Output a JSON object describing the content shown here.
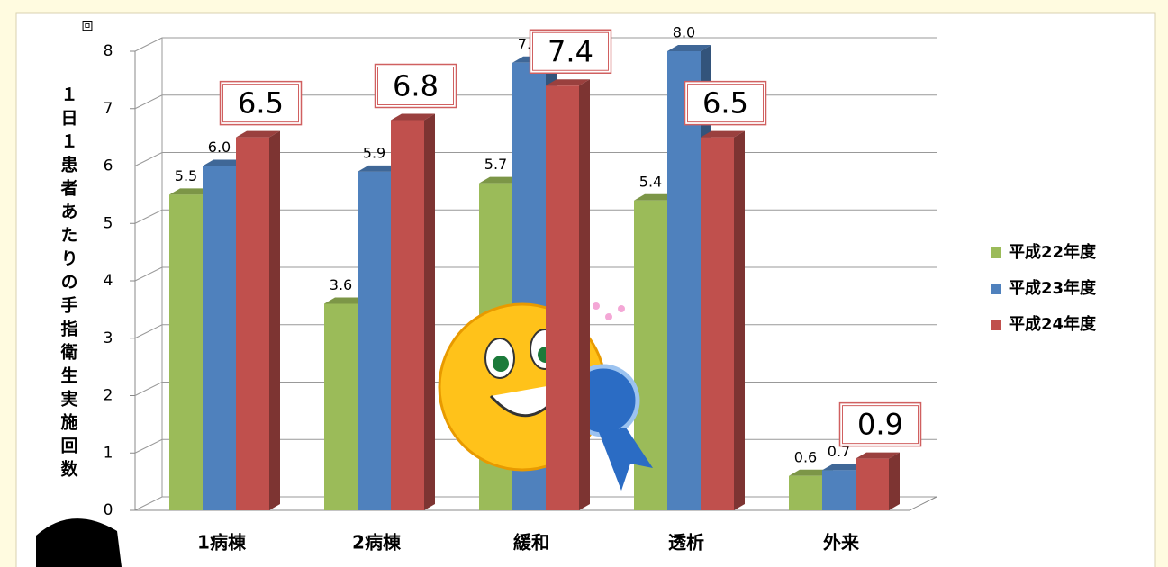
{
  "chart_data": {
    "type": "bar",
    "y_unit": "回",
    "ylabel": "１日１患者あたりの手指衛生実施回数",
    "categories": [
      "1病棟",
      "2病棟",
      "緩和",
      "透析",
      "外来"
    ],
    "series": [
      {
        "name": "平成22年度",
        "color": "#9bbb59",
        "values": [
          5.5,
          3.6,
          5.7,
          5.4,
          0.6
        ],
        "value_labels": [
          "5.5",
          "3.6",
          "5.7",
          "5.4",
          "0.6"
        ]
      },
      {
        "name": "平成23年度",
        "color": "#4f81bd",
        "values": [
          6.0,
          5.9,
          7.8,
          8.0,
          0.7
        ],
        "value_labels": [
          "6.0",
          "5.9",
          "7.8",
          "8.0",
          "0.7"
        ]
      },
      {
        "name": "平成24年度",
        "color": "#c0504d",
        "values": [
          6.5,
          6.8,
          7.4,
          6.5,
          0.9
        ],
        "value_labels": [
          "6.5",
          "6.8",
          "7.4",
          "6.5",
          "0.9"
        ]
      }
    ],
    "ylim": [
      0,
      8
    ],
    "yticks": [
      0,
      1,
      2,
      3,
      4,
      5,
      6,
      7,
      8
    ],
    "grid": true,
    "legend": "right"
  }
}
